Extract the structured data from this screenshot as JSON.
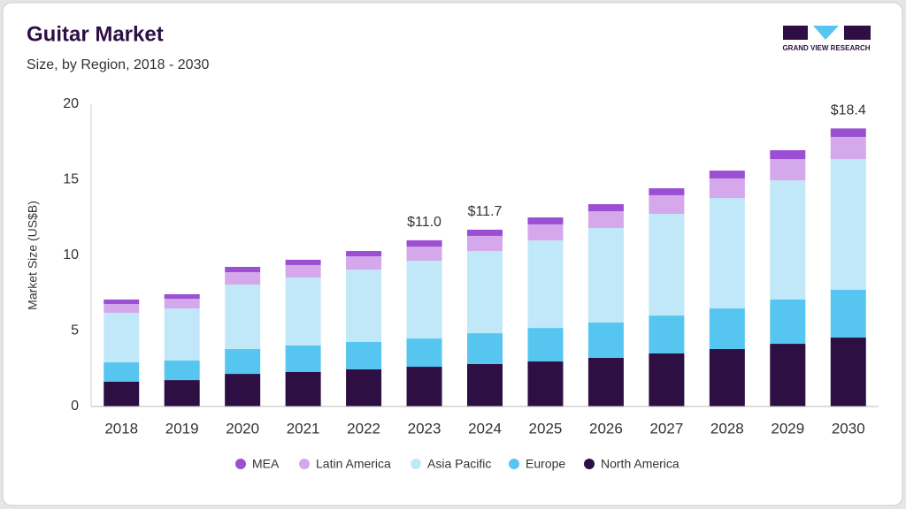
{
  "chart_data": {
    "type": "stacked_bar",
    "title": "Guitar Market",
    "subtitle": "Size, by Region, 2018 - 2030",
    "logo_text": "GRAND VIEW RESEARCH",
    "y_label": "Market Size (US$B)",
    "categories": [
      "2018",
      "2019",
      "2020",
      "2021",
      "2022",
      "2023",
      "2024",
      "2025",
      "2026",
      "2027",
      "2028",
      "2029",
      "2030"
    ],
    "series": [
      {
        "name": "MEA",
        "color": "#9b4fd3",
        "values": [
          0.3,
          0.3,
          0.35,
          0.35,
          0.35,
          0.42,
          0.41,
          0.46,
          0.47,
          0.46,
          0.52,
          0.59,
          0.56
        ]
      },
      {
        "name": "Latin America",
        "color": "#d4a8ea",
        "values": [
          0.58,
          0.64,
          0.82,
          0.82,
          0.88,
          0.93,
          1.0,
          1.06,
          1.11,
          1.23,
          1.29,
          1.4,
          1.47
        ]
      },
      {
        "name": "Asia Pacific",
        "color": "#c1e8f8",
        "values": [
          3.28,
          3.45,
          4.27,
          4.5,
          4.79,
          5.15,
          5.44,
          5.79,
          6.25,
          6.73,
          7.31,
          7.89,
          8.65
        ]
      },
      {
        "name": "Europe",
        "color": "#56c6f0",
        "values": [
          1.28,
          1.29,
          1.64,
          1.76,
          1.81,
          1.87,
          2.04,
          2.22,
          2.34,
          2.51,
          2.69,
          2.93,
          3.16
        ]
      },
      {
        "name": "North America",
        "color": "#2d0f44",
        "values": [
          1.64,
          1.75,
          2.16,
          2.28,
          2.46,
          2.63,
          2.81,
          2.98,
          3.22,
          3.51,
          3.8,
          4.15,
          4.56
        ]
      }
    ],
    "totals": [
      null,
      null,
      null,
      null,
      null,
      11.0,
      11.7,
      null,
      null,
      null,
      null,
      null,
      18.4
    ],
    "total_labels": [
      null,
      null,
      null,
      null,
      null,
      "$11.0",
      "$11.7",
      null,
      null,
      null,
      null,
      null,
      "$18.4"
    ],
    "ylim": [
      0,
      20
    ],
    "yticks": [
      0,
      5,
      10,
      15,
      20
    ],
    "grid": false,
    "legend": "bottom"
  }
}
